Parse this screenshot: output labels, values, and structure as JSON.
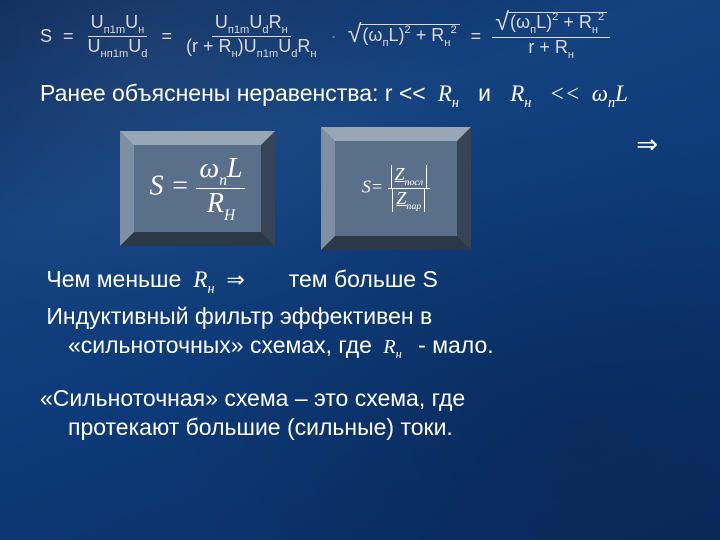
{
  "colors": {
    "background_gradient": [
      "#0b2a5a",
      "#14427f",
      "#0d3a78",
      "#0a2c62"
    ],
    "text_main": "#ffffff",
    "text_eq_top": "#d9d9d9",
    "bevel_face": "#5a6f89"
  },
  "typography": {
    "body_font": "Arial",
    "math_font": "Times New Roman",
    "body_size_pt": 17,
    "eq_top_size_pt": 13,
    "box1_size_pt": 21,
    "box2_size_pt": 13
  },
  "top_equation": {
    "lhs": "S",
    "frac1": {
      "num": "Uп1mUн",
      "den": "Uнп1mUd"
    },
    "frac2": {
      "num": "Uп1mUdRн",
      "den": "(r + Rн)Uп1mUdRн"
    },
    "sqrt1_num": "(ωпL)² + Rн²",
    "sqrt1_whole_over": null,
    "frac3": {
      "num": "√((ωпL)² + Rн²)",
      "den": "r + Rн"
    }
  },
  "line_inequalities_pre": "Ранее объяснены неравенства: r  <<",
  "sym_Rn": "Rн",
  "ineq_and": "и",
  "ineq_rhs": "<<  ωпL",
  "implies_glyph": "⇒",
  "box1_latex": "S = ωпL / Rн",
  "box1": {
    "lhs": "S =",
    "num": "ωпL",
    "den_sym": "R",
    "den_sub": "H"
  },
  "box2_latex": "S = |Z_посл| / |Z_пар|",
  "box2": {
    "lhs": "S=",
    "num_sym": "Z",
    "num_sub": "посл",
    "den_sym": "Z",
    "den_sub": "пар"
  },
  "line_smaller_pre": "Чем меньше",
  "line_smaller_post": "тем  больше S",
  "line_effective_a": "Индуктивный фильтр эффективен в",
  "line_effective_b_pre": "«сильноточных» схемах, где",
  "line_effective_b_post": "- мало.",
  "line_strong_a": "«Сильноточная» схема – это схема, где",
  "line_strong_b": "протекают большие (сильные) токи.",
  "sym_Rn_small": "Rн"
}
